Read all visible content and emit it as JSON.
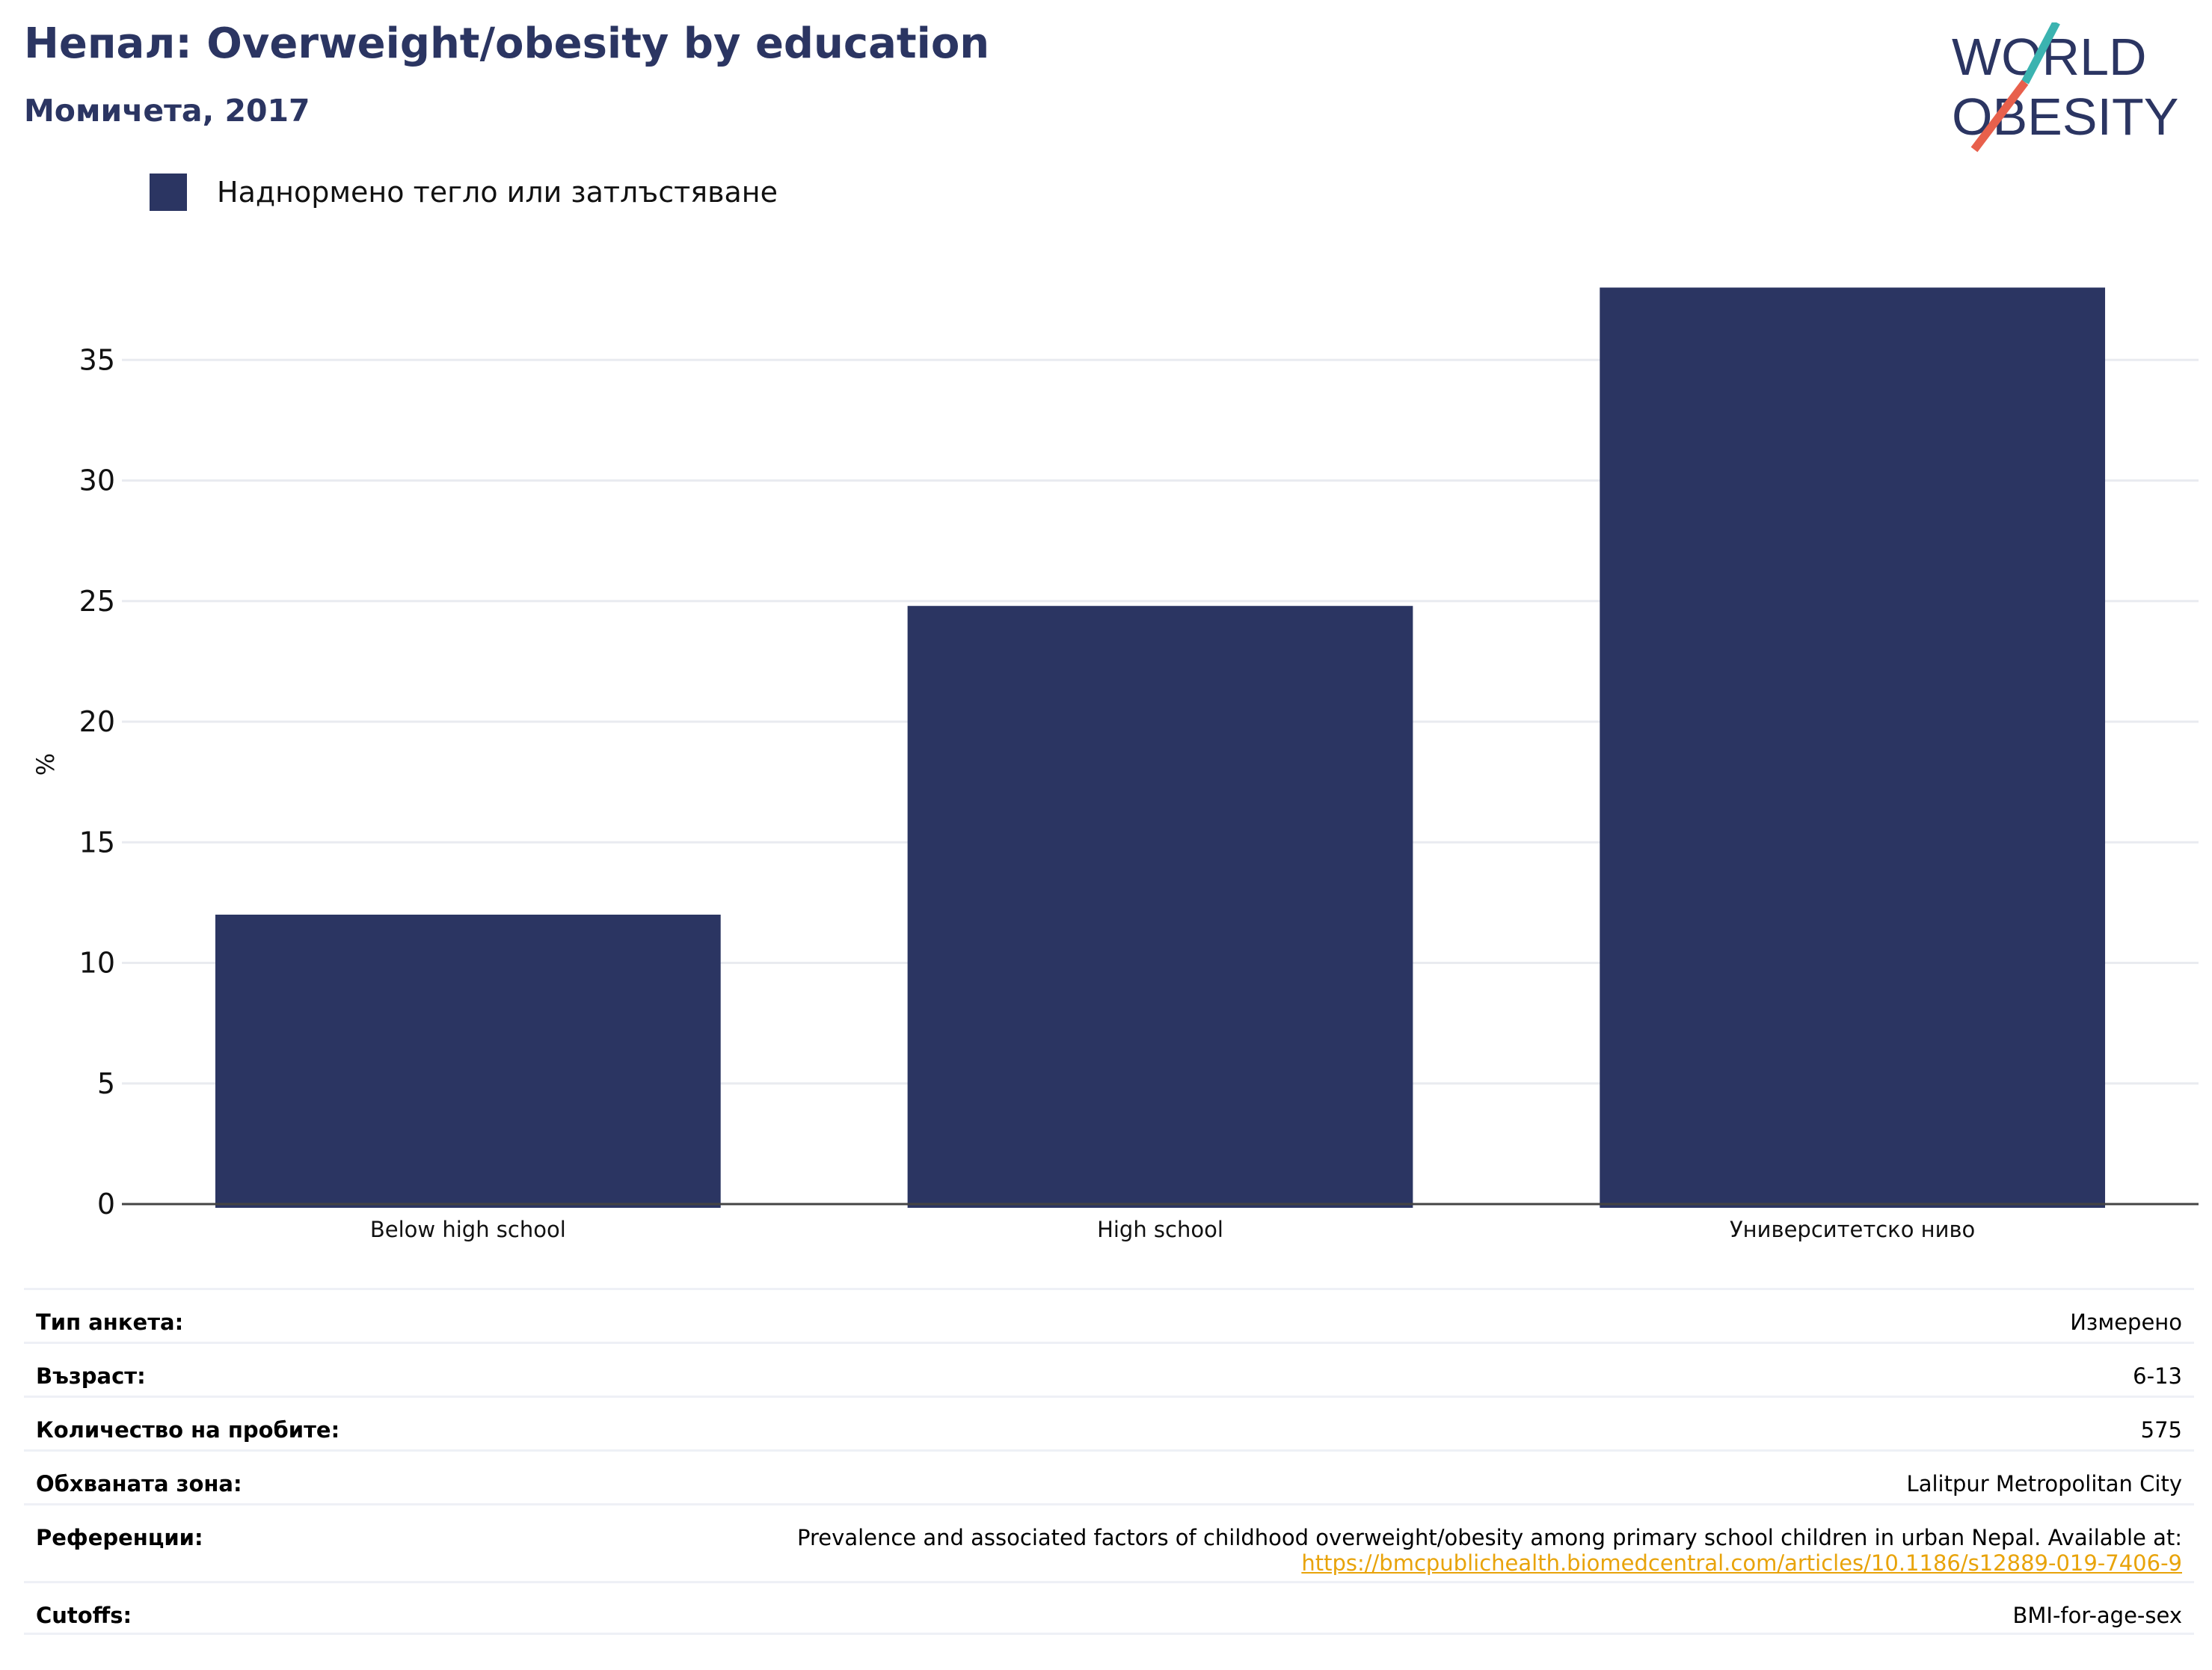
{
  "header": {
    "title": "Непал: Overweight/obesity by education",
    "subtitle": "Момичета, 2017"
  },
  "logo": {
    "line1": "WORLD",
    "line2": "OBESITY",
    "colors": {
      "text": "#2b3562",
      "slash_top": "#3bb3b0",
      "slash_bottom": "#e8604c"
    }
  },
  "legend": {
    "label": "Наднормено тегло или затлъстяване",
    "color": "#2b3562"
  },
  "chart_data": {
    "type": "bar",
    "categories": [
      "Below high school",
      "High school",
      "Университетско ниво"
    ],
    "series": [
      {
        "name": "Наднормено тегло или затлъстяване",
        "values": [
          12.0,
          24.8,
          38.0
        ],
        "color": "#2b3562"
      }
    ],
    "ylabel": "%",
    "xlabel": "",
    "ylim": [
      0,
      40
    ],
    "yticks": [
      0,
      5,
      10,
      15,
      20,
      25,
      30,
      35
    ],
    "grid": true,
    "legend_position": "top-left"
  },
  "info": {
    "survey_type": {
      "label": "Тип анкета:",
      "value": "Измерено"
    },
    "age": {
      "label": "Възраст:",
      "value": "6-13"
    },
    "sample_size": {
      "label": "Количество на пробите:",
      "value": "575"
    },
    "area": {
      "label": "Обхваната зона:",
      "value": "Lalitpur Metropolitan City"
    },
    "references": {
      "label": "Референции:",
      "value": "Prevalence and associated factors of childhood overweight/obesity among primary school children in urban Nepal. Available at:",
      "link": "https://bmcpublichealth.biomedcentral.com/articles/10.1186/s12889-019-7406-9"
    },
    "cutoffs": {
      "label": "Cutoffs:",
      "value": "BMI-for-age-sex"
    }
  }
}
